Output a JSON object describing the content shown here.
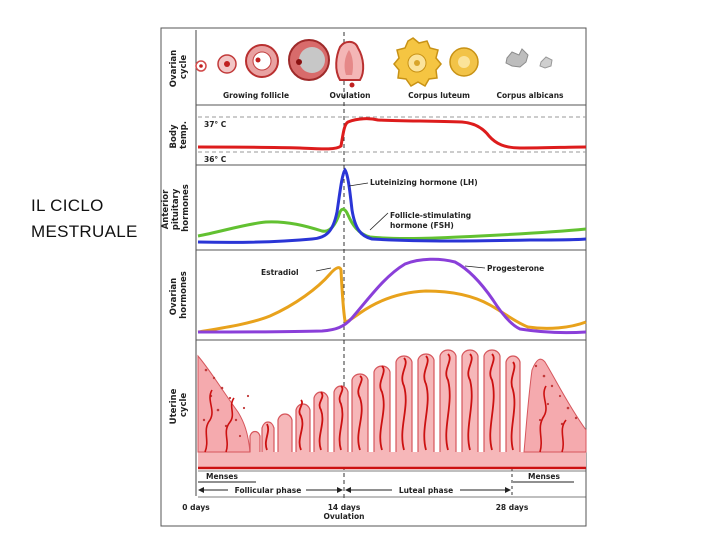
{
  "slide": {
    "title_line1": "IL CICLO",
    "title_line2": "MESTRUALE"
  },
  "diagram": {
    "rows": {
      "ovarian_cycle": [
        "Ovarian",
        "cycle"
      ],
      "body_temp": [
        "Body",
        "temp."
      ],
      "pituitary": [
        "Anterior",
        "pituitary",
        "hormones"
      ],
      "ovarian_hormones": [
        "Ovarian",
        "hormones"
      ],
      "uterine": [
        "Uterine",
        "cycle"
      ]
    },
    "stages": {
      "growing_follicle": "Growing follicle",
      "ovulation": "Ovulation",
      "corpus_luteum": "Corpus luteum",
      "corpus_albicans": "Corpus albicans"
    },
    "temperature": {
      "high": "37° C",
      "low": "36° C"
    },
    "hormones": {
      "lh": "Luteinizing hormone (LH)",
      "fsh_line1": "Follicle-stimulating",
      "fsh_line2": "hormone (FSH)",
      "estradiol": "Estradiol",
      "progesterone": "Progesterone"
    },
    "phases": {
      "menses_start": "Menses",
      "menses_end": "Menses",
      "follicular": "Follicular phase",
      "luteal": "Luteal phase"
    },
    "days": {
      "start": "0 days",
      "mid": "14 days",
      "mid_sub": "Ovulation",
      "end": "28 days"
    },
    "colors": {
      "temperature": "#dd1c1c",
      "lh": "#2a35d6",
      "fsh": "#62c131",
      "estradiol": "#e8a21c",
      "progesterone": "#8a3fd9",
      "endometrium": "#f6b7b9",
      "vessels": "#cc1111"
    }
  }
}
